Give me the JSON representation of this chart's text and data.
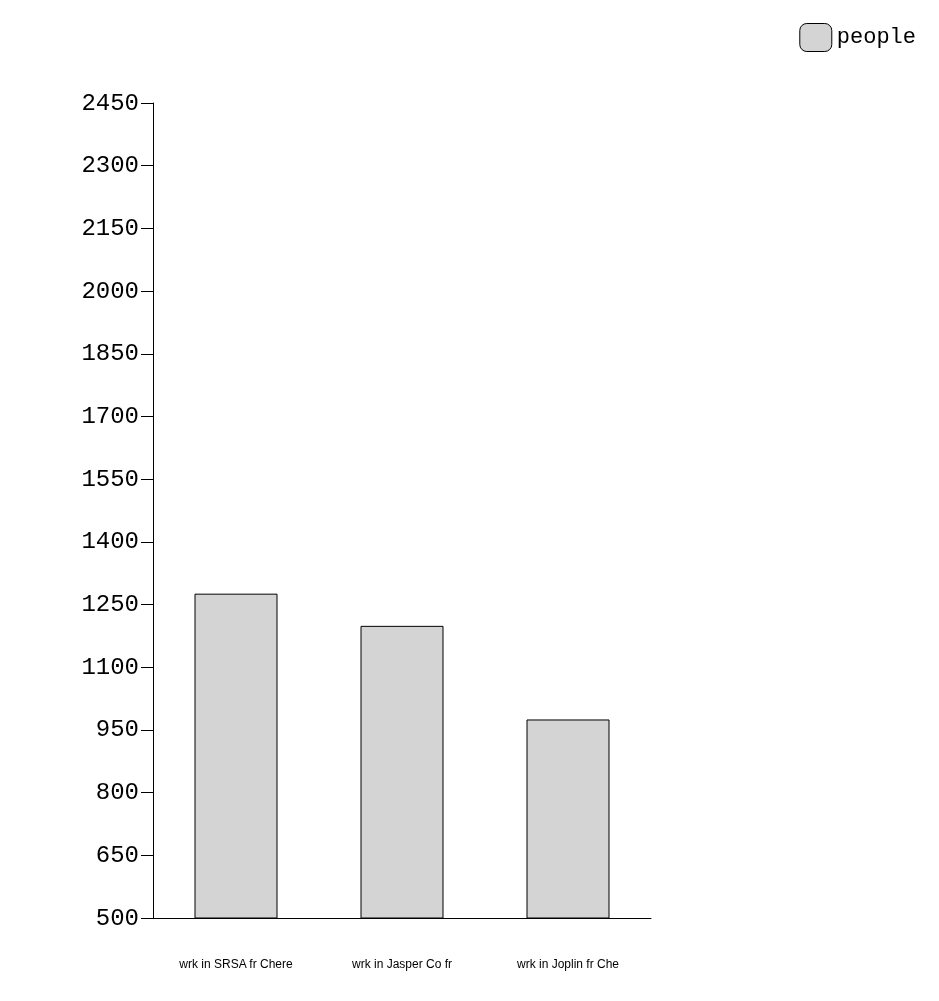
{
  "chart_data": {
    "type": "bar",
    "categories": [
      "wrk in SRSA fr Chere",
      "wrk in Jasper Co fr",
      "wrk in Joplin fr Che"
    ],
    "series": [
      {
        "name": "people",
        "color": "#d4d4d4",
        "values": [
          1276,
          1199,
          975
        ]
      }
    ],
    "ylim": [
      500,
      2450
    ],
    "yticks": [
      500,
      650,
      800,
      950,
      1100,
      1250,
      1400,
      1550,
      1700,
      1850,
      2000,
      2150,
      2300,
      2450
    ],
    "grid": false,
    "legend": "top right"
  }
}
